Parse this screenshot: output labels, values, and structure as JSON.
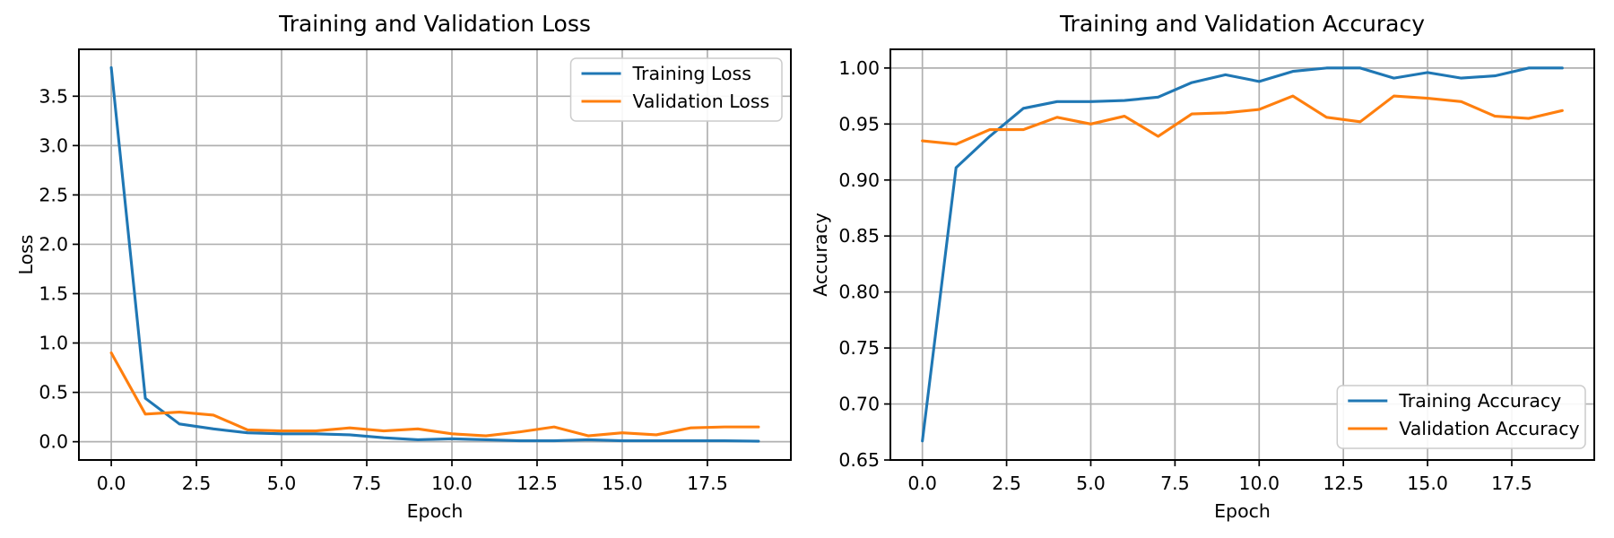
{
  "figure": {
    "background_color": "#ffffff",
    "grid_color": "#b0b0b0",
    "spine_color": "#000000",
    "text_color": "#000000"
  },
  "chart_data": [
    {
      "type": "line",
      "title": "Training and Validation Loss",
      "xlabel": "Epoch",
      "ylabel": "Loss",
      "x": [
        0,
        1,
        2,
        3,
        4,
        5,
        6,
        7,
        8,
        9,
        10,
        11,
        12,
        13,
        14,
        15,
        16,
        17,
        18,
        19
      ],
      "series": [
        {
          "name": "Training Loss",
          "color": "#1f77b4",
          "values": [
            3.79,
            0.44,
            0.18,
            0.13,
            0.09,
            0.08,
            0.08,
            0.07,
            0.04,
            0.02,
            0.03,
            0.02,
            0.01,
            0.01,
            0.02,
            0.01,
            0.01,
            0.01,
            0.01,
            0.005
          ]
        },
        {
          "name": "Validation Loss",
          "color": "#ff7f0e",
          "values": [
            0.9,
            0.28,
            0.3,
            0.27,
            0.12,
            0.11,
            0.11,
            0.14,
            0.11,
            0.13,
            0.08,
            0.06,
            0.1,
            0.15,
            0.06,
            0.09,
            0.07,
            0.14,
            0.15,
            0.15
          ]
        }
      ],
      "xlim": [
        -0.95,
        19.95
      ],
      "ylim": [
        -0.185,
        3.975
      ],
      "xticks": {
        "positions": [
          0,
          2.5,
          5,
          7.5,
          10,
          12.5,
          15,
          17.5
        ],
        "labels": [
          "0.0",
          "2.5",
          "5.0",
          "7.5",
          "10.0",
          "12.5",
          "15.0",
          "17.5"
        ]
      },
      "yticks": {
        "positions": [
          0,
          0.5,
          1.0,
          1.5,
          2.0,
          2.5,
          3.0,
          3.5
        ],
        "labels": [
          "0.0",
          "0.5",
          "1.0",
          "1.5",
          "2.0",
          "2.5",
          "3.0",
          "3.5"
        ]
      },
      "grid": true,
      "legend_loc": "upper right"
    },
    {
      "type": "line",
      "title": "Training and Validation Accuracy",
      "xlabel": "Epoch",
      "ylabel": "Accuracy",
      "x": [
        0,
        1,
        2,
        3,
        4,
        5,
        6,
        7,
        8,
        9,
        10,
        11,
        12,
        13,
        14,
        15,
        16,
        17,
        18,
        19
      ],
      "series": [
        {
          "name": "Training Accuracy",
          "color": "#1f77b4",
          "values": [
            0.667,
            0.911,
            0.939,
            0.964,
            0.97,
            0.97,
            0.971,
            0.974,
            0.987,
            0.994,
            0.988,
            0.997,
            1.0,
            1.0,
            0.991,
            0.996,
            0.991,
            0.993,
            1.0,
            1.0
          ]
        },
        {
          "name": "Validation Accuracy",
          "color": "#ff7f0e",
          "values": [
            0.935,
            0.932,
            0.945,
            0.945,
            0.956,
            0.95,
            0.957,
            0.939,
            0.959,
            0.96,
            0.963,
            0.975,
            0.956,
            0.952,
            0.975,
            0.973,
            0.97,
            0.957,
            0.955,
            0.962
          ]
        }
      ],
      "xlim": [
        -0.95,
        19.95
      ],
      "ylim": [
        0.65,
        1.0167
      ],
      "xticks": {
        "positions": [
          0,
          2.5,
          5,
          7.5,
          10,
          12.5,
          15,
          17.5
        ],
        "labels": [
          "0.0",
          "2.5",
          "5.0",
          "7.5",
          "10.0",
          "12.5",
          "15.0",
          "17.5"
        ]
      },
      "yticks": {
        "positions": [
          0.65,
          0.7,
          0.75,
          0.8,
          0.85,
          0.9,
          0.95,
          1.0
        ],
        "labels": [
          "0.65",
          "0.70",
          "0.75",
          "0.80",
          "0.85",
          "0.90",
          "0.95",
          "1.00"
        ]
      },
      "grid": true,
      "legend_loc": "lower right"
    }
  ]
}
